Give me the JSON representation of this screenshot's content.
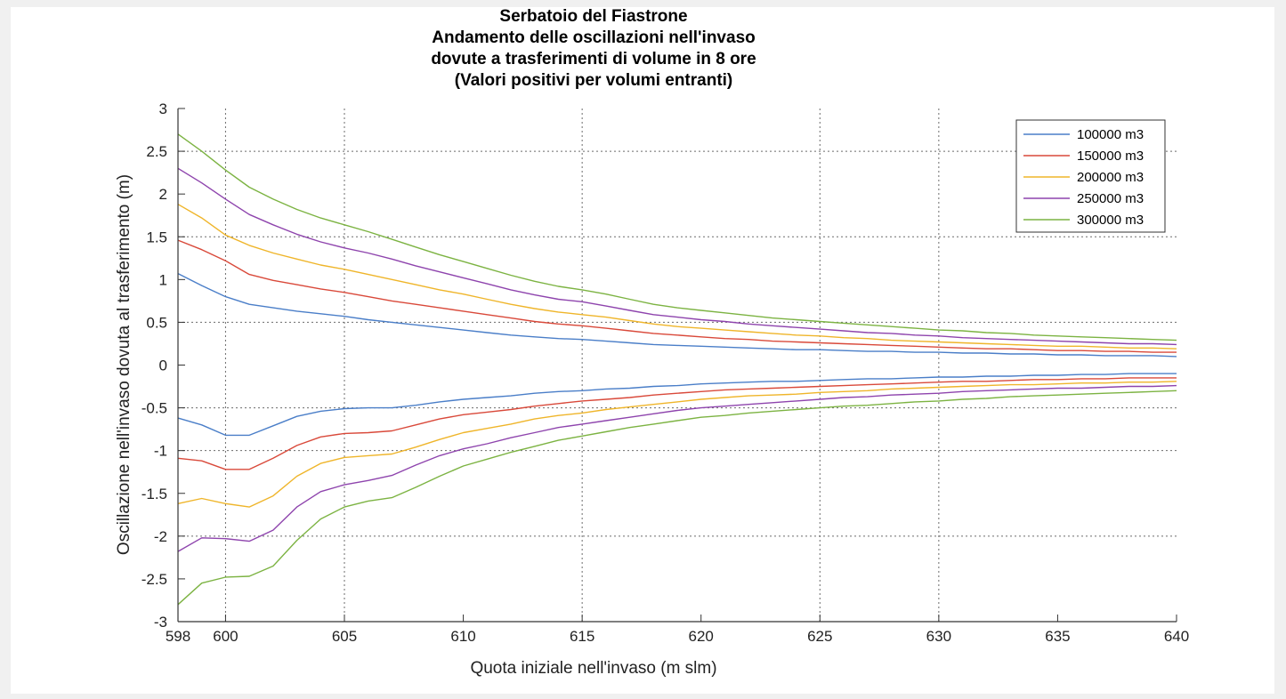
{
  "chart_data": {
    "type": "line",
    "title": [
      "Serbatoio del Fiastrone",
      "Andamento delle oscillazioni nell'invaso",
      "dovute a trasferimenti di volume in 8 ore",
      "(Valori positivi per volumi entranti)"
    ],
    "xlabel": "Quota iniziale nell'invaso (m slm)",
    "ylabel": "Oscillazione nell'invaso dovuta al trasferimento (m)",
    "xlim": [
      598,
      640
    ],
    "ylim": [
      -3,
      3
    ],
    "xticks": [
      598,
      600,
      605,
      610,
      615,
      620,
      625,
      630,
      635,
      640
    ],
    "xtick_labels": [
      "598",
      "600",
      "605",
      "610",
      "615",
      "620",
      "625",
      "630",
      "635",
      "640"
    ],
    "yticks": [
      3,
      2.5,
      2,
      1.5,
      1,
      0.5,
      0,
      -0.5,
      -1,
      -1.5,
      -2,
      -2.5,
      -3
    ],
    "ytick_labels": [
      "3",
      "2.5",
      "2",
      "1.5",
      "1",
      "0.5",
      "0",
      "-0.5",
      "-1",
      "-1.5",
      "-2",
      "-2.5",
      "-3"
    ],
    "grid_x": [
      600,
      605,
      615,
      625,
      630
    ],
    "grid_y": [
      2.5,
      1.5,
      0.5,
      -0.5,
      -1,
      -2
    ],
    "legend_position": "top-right",
    "x": [
      598,
      599,
      600,
      601,
      602,
      603,
      604,
      605,
      606,
      607,
      608,
      609,
      610,
      611,
      612,
      613,
      614,
      615,
      616,
      617,
      618,
      619,
      620,
      621,
      622,
      623,
      624,
      625,
      626,
      627,
      628,
      629,
      630,
      631,
      632,
      633,
      634,
      635,
      636,
      637,
      638,
      639,
      640
    ],
    "series": [
      {
        "name": "100000 m3",
        "color": "#4a7ec8",
        "positive": [
          1.07,
          0.93,
          0.8,
          0.71,
          0.67,
          0.63,
          0.6,
          0.57,
          0.53,
          0.5,
          0.47,
          0.44,
          0.41,
          0.38,
          0.35,
          0.33,
          0.31,
          0.3,
          0.28,
          0.26,
          0.24,
          0.23,
          0.22,
          0.21,
          0.2,
          0.19,
          0.18,
          0.18,
          0.17,
          0.16,
          0.16,
          0.15,
          0.15,
          0.14,
          0.14,
          0.13,
          0.13,
          0.12,
          0.12,
          0.11,
          0.11,
          0.11,
          0.1
        ],
        "negative": [
          -0.62,
          -0.7,
          -0.82,
          -0.82,
          -0.71,
          -0.6,
          -0.54,
          -0.51,
          -0.5,
          -0.5,
          -0.47,
          -0.43,
          -0.4,
          -0.38,
          -0.36,
          -0.33,
          -0.31,
          -0.3,
          -0.28,
          -0.27,
          -0.25,
          -0.24,
          -0.22,
          -0.21,
          -0.2,
          -0.19,
          -0.19,
          -0.18,
          -0.17,
          -0.16,
          -0.16,
          -0.15,
          -0.14,
          -0.14,
          -0.13,
          -0.13,
          -0.12,
          -0.12,
          -0.11,
          -0.11,
          -0.1,
          -0.1,
          -0.1
        ]
      },
      {
        "name": "150000 m3",
        "color": "#d9493a",
        "positive": [
          1.46,
          1.35,
          1.22,
          1.06,
          0.99,
          0.94,
          0.89,
          0.85,
          0.8,
          0.75,
          0.71,
          0.67,
          0.63,
          0.59,
          0.55,
          0.51,
          0.48,
          0.46,
          0.43,
          0.4,
          0.37,
          0.35,
          0.33,
          0.31,
          0.3,
          0.28,
          0.27,
          0.26,
          0.25,
          0.24,
          0.23,
          0.22,
          0.21,
          0.2,
          0.19,
          0.19,
          0.18,
          0.17,
          0.17,
          0.16,
          0.16,
          0.15,
          0.15
        ],
        "negative": [
          -1.09,
          -1.12,
          -1.22,
          -1.22,
          -1.09,
          -0.94,
          -0.84,
          -0.8,
          -0.79,
          -0.77,
          -0.7,
          -0.63,
          -0.58,
          -0.55,
          -0.52,
          -0.48,
          -0.45,
          -0.42,
          -0.4,
          -0.38,
          -0.35,
          -0.33,
          -0.31,
          -0.29,
          -0.28,
          -0.27,
          -0.26,
          -0.25,
          -0.24,
          -0.23,
          -0.22,
          -0.21,
          -0.2,
          -0.19,
          -0.19,
          -0.18,
          -0.17,
          -0.17,
          -0.16,
          -0.16,
          -0.15,
          -0.15,
          -0.15
        ]
      },
      {
        "name": "200000 m3",
        "color": "#efb52a",
        "positive": [
          1.88,
          1.72,
          1.52,
          1.4,
          1.31,
          1.24,
          1.17,
          1.12,
          1.06,
          1.0,
          0.94,
          0.88,
          0.83,
          0.77,
          0.71,
          0.66,
          0.62,
          0.59,
          0.56,
          0.52,
          0.48,
          0.45,
          0.43,
          0.41,
          0.39,
          0.37,
          0.35,
          0.34,
          0.32,
          0.31,
          0.29,
          0.28,
          0.27,
          0.26,
          0.25,
          0.24,
          0.23,
          0.22,
          0.22,
          0.21,
          0.2,
          0.2,
          0.19
        ],
        "negative": [
          -1.62,
          -1.56,
          -1.62,
          -1.66,
          -1.53,
          -1.3,
          -1.15,
          -1.08,
          -1.06,
          -1.04,
          -0.96,
          -0.87,
          -0.79,
          -0.74,
          -0.69,
          -0.63,
          -0.59,
          -0.56,
          -0.52,
          -0.49,
          -0.46,
          -0.43,
          -0.4,
          -0.38,
          -0.36,
          -0.35,
          -0.34,
          -0.32,
          -0.31,
          -0.3,
          -0.28,
          -0.27,
          -0.26,
          -0.25,
          -0.24,
          -0.23,
          -0.23,
          -0.22,
          -0.21,
          -0.21,
          -0.2,
          -0.2,
          -0.19
        ]
      },
      {
        "name": "250000 m3",
        "color": "#8e44ad",
        "positive": [
          2.3,
          2.13,
          1.94,
          1.76,
          1.64,
          1.53,
          1.44,
          1.37,
          1.31,
          1.24,
          1.16,
          1.09,
          1.02,
          0.95,
          0.88,
          0.82,
          0.77,
          0.74,
          0.69,
          0.64,
          0.59,
          0.56,
          0.53,
          0.51,
          0.48,
          0.46,
          0.44,
          0.42,
          0.4,
          0.38,
          0.37,
          0.35,
          0.34,
          0.32,
          0.31,
          0.3,
          0.29,
          0.28,
          0.27,
          0.26,
          0.25,
          0.25,
          0.24
        ],
        "negative": [
          -2.18,
          -2.02,
          -2.03,
          -2.06,
          -1.93,
          -1.66,
          -1.48,
          -1.4,
          -1.35,
          -1.29,
          -1.17,
          -1.06,
          -0.98,
          -0.92,
          -0.85,
          -0.79,
          -0.73,
          -0.69,
          -0.65,
          -0.61,
          -0.57,
          -0.53,
          -0.5,
          -0.48,
          -0.46,
          -0.44,
          -0.42,
          -0.4,
          -0.38,
          -0.37,
          -0.35,
          -0.34,
          -0.33,
          -0.31,
          -0.3,
          -0.29,
          -0.28,
          -0.27,
          -0.27,
          -0.26,
          -0.25,
          -0.25,
          -0.24
        ]
      },
      {
        "name": "300000 m3",
        "color": "#7cb342",
        "positive": [
          2.7,
          2.5,
          2.28,
          2.08,
          1.94,
          1.82,
          1.72,
          1.64,
          1.56,
          1.47,
          1.38,
          1.29,
          1.21,
          1.13,
          1.05,
          0.98,
          0.92,
          0.88,
          0.83,
          0.77,
          0.71,
          0.67,
          0.64,
          0.61,
          0.58,
          0.55,
          0.53,
          0.51,
          0.49,
          0.47,
          0.45,
          0.43,
          0.41,
          0.4,
          0.38,
          0.37,
          0.35,
          0.34,
          0.33,
          0.32,
          0.31,
          0.3,
          0.29
        ],
        "negative": [
          -2.8,
          -2.55,
          -2.48,
          -2.47,
          -2.35,
          -2.05,
          -1.8,
          -1.66,
          -1.59,
          -1.55,
          -1.43,
          -1.3,
          -1.18,
          -1.1,
          -1.02,
          -0.95,
          -0.88,
          -0.83,
          -0.78,
          -0.73,
          -0.69,
          -0.65,
          -0.61,
          -0.59,
          -0.56,
          -0.54,
          -0.52,
          -0.5,
          -0.48,
          -0.47,
          -0.45,
          -0.43,
          -0.42,
          -0.4,
          -0.39,
          -0.37,
          -0.36,
          -0.35,
          -0.34,
          -0.33,
          -0.32,
          -0.31,
          -0.3
        ]
      }
    ]
  }
}
